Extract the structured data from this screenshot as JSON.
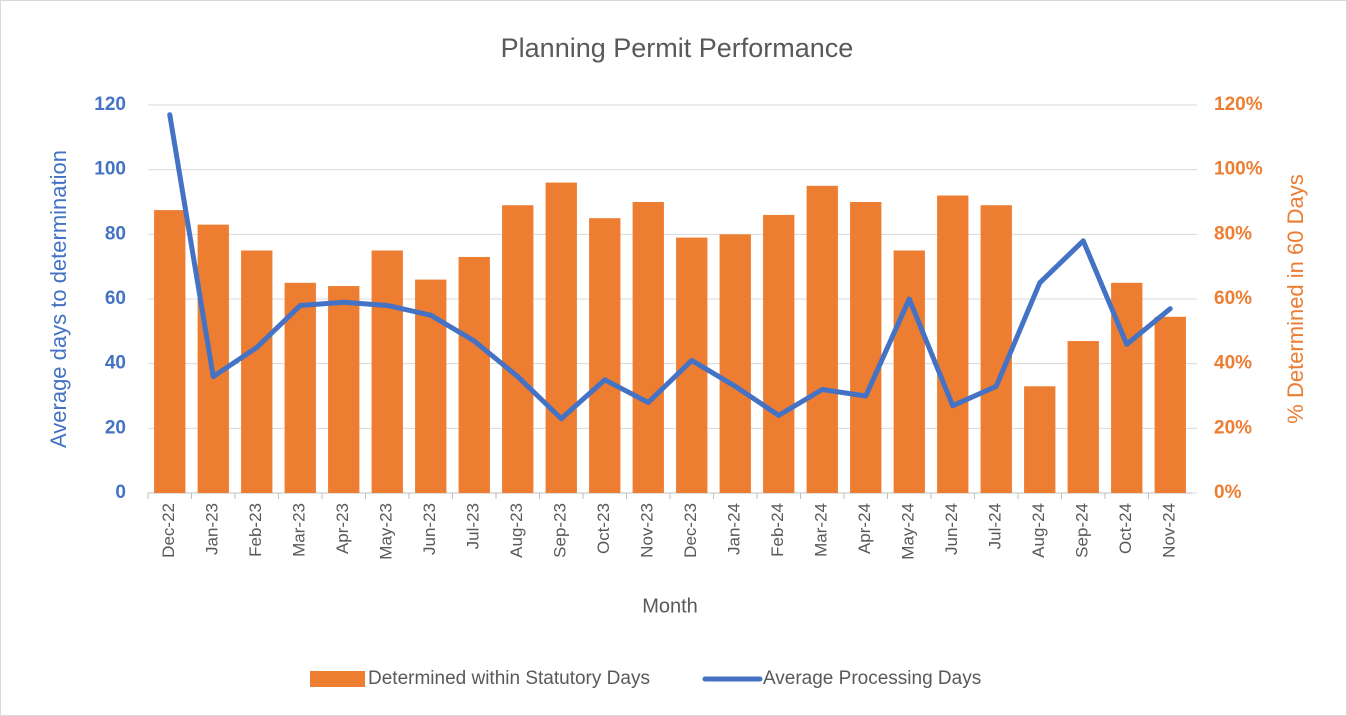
{
  "chart_data": {
    "type": "bar-line",
    "title": "Planning Permit Performance",
    "x_label": "Month",
    "y_label": "Average days to determination",
    "y2_label": "% Determined in 60 Days",
    "categories": [
      "Dec-22",
      "Jan-23",
      "Feb-23",
      "Mar-23",
      "Apr-23",
      "May-23",
      "Jun-23",
      "Jul-23",
      "Aug-23",
      "Sep-23",
      "Oct-23",
      "Nov-23",
      "Dec-23",
      "Jan-24",
      "Feb-24",
      "Mar-24",
      "Apr-24",
      "May-24",
      "Jun-24",
      "Jul-24",
      "Aug-24",
      "Sep-24",
      "Oct-24",
      "Nov-24"
    ],
    "series": [
      {
        "name": "Determined within Statutory Days",
        "type": "bar",
        "axis": "y2",
        "color": "#ed7d31",
        "values": [
          87.5,
          83,
          75,
          65,
          64,
          75,
          66,
          73,
          89,
          96,
          85,
          90,
          79,
          80,
          86,
          95,
          90,
          75,
          92,
          89,
          33,
          47,
          65,
          54.5
        ]
      },
      {
        "name": "Average Processing Days",
        "type": "line",
        "axis": "y",
        "color": "#4472c4",
        "values": [
          117,
          36,
          45,
          58,
          59,
          58,
          55,
          47,
          36,
          23,
          35,
          28,
          41,
          33,
          24,
          32,
          30,
          60,
          27,
          33,
          65,
          78,
          46,
          57
        ]
      }
    ],
    "ylim": [
      0,
      120
    ],
    "yticks": [
      0,
      20,
      40,
      60,
      80,
      100,
      120
    ],
    "y2lim": [
      0,
      120
    ],
    "y2ticks": [
      {
        "value": 0,
        "label": "0%"
      },
      {
        "value": 20,
        "label": "20%"
      },
      {
        "value": 40,
        "label": "40%"
      },
      {
        "value": 60,
        "label": "60%"
      },
      {
        "value": 80,
        "label": "80%"
      },
      {
        "value": 100,
        "label": "100%"
      },
      {
        "value": 120,
        "label": "120%"
      }
    ],
    "grid": true,
    "legend": "bottom"
  }
}
